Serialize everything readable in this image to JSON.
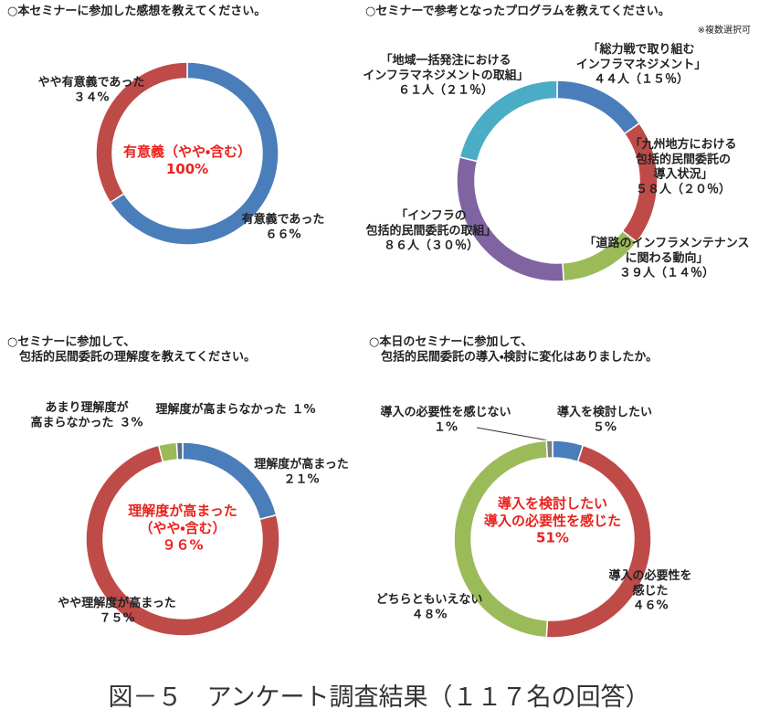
{
  "chart_data": [
    {
      "type": "donut",
      "title": "○本セミナーに参加した感想を教えてください。",
      "categories": [
        "有意義であった",
        "やや有意義であった"
      ],
      "values": [
        66,
        34
      ],
      "value_labels": [
        "６６%",
        "３４%"
      ],
      "colors": [
        "#4a7ebb",
        "#be4b48"
      ],
      "center_label": "有意義（やや・含む）\n100%",
      "center_color": "#e8231e"
    },
    {
      "type": "donut",
      "title": "○セミナーで参考となったプログラムを教えてください。",
      "note": "※複数選択可",
      "categories": [
        "「総力戦で取り組む\nインフラマネジメント」",
        "「九州地方における\n包括的民間委託の\n導入状況」",
        "「道路のインフラメンテナンス\nに関わる動向」",
        "「インフラの\n包括的民間委託の取組」",
        "「地域一括発注における\nインフラマネジメントの取組」"
      ],
      "values": [
        44,
        58,
        39,
        86,
        61
      ],
      "value_labels": [
        "４４人（１５％）",
        "５８人（２０％）",
        "３９人（１４％）",
        "８６人（３０％）",
        "６１人（２１％）"
      ],
      "colors": [
        "#4a7ebb",
        "#be4b48",
        "#9bbb59",
        "#8064a2",
        "#4bacc6"
      ]
    },
    {
      "type": "donut",
      "title": "○セミナーに参加して、\n　包括的民間委託の理解度を教えてください。",
      "categories": [
        "理解度が高まった",
        "やや理解度が高まった",
        "あまり理解度が\n高まらなかった",
        "理解度が高まらなかった"
      ],
      "values": [
        21,
        75,
        3,
        1
      ],
      "value_labels": [
        "２１%",
        "７５%",
        "３%",
        "１%"
      ],
      "colors": [
        "#4a7ebb",
        "#be4b48",
        "#9bbb59",
        "#5a6e8c"
      ],
      "center_label": "理解度が高まった\n（やや・含む）\n９６%",
      "center_color": "#e8231e"
    },
    {
      "type": "donut",
      "title": "○本日のセミナーに参加して、\n　包括的民間委託の導入・検討に変化はありましたか。",
      "categories": [
        "導入を検討したい",
        "導入の必要性を\n感じた",
        "どちらともいえない",
        "導入の必要性を感じない"
      ],
      "values": [
        5,
        46,
        48,
        1
      ],
      "value_labels": [
        "５%",
        "４６%",
        "４８%",
        "１%"
      ],
      "colors": [
        "#4a7ebb",
        "#be4b48",
        "#9bbb59",
        "#7f7f7f"
      ],
      "center_label": "導入を検討したい\n導入の必要性を感じた\n51%",
      "center_color": "#e8231e"
    }
  ],
  "caption": "図－５　アンケート調査結果（１１７名の回答）"
}
